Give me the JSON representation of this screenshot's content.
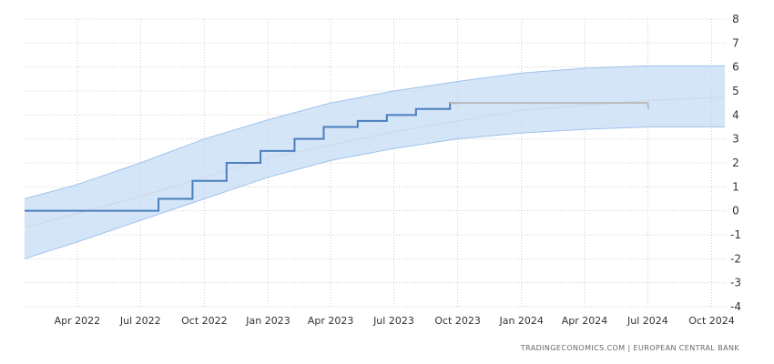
{
  "chart_data": {
    "type": "line",
    "title": "",
    "xlabel": "",
    "ylabel": "",
    "ylim": [
      -4,
      8
    ],
    "yticks": [
      8,
      7,
      6,
      5,
      4,
      3,
      2,
      1,
      0,
      -1,
      -2,
      -3,
      -4
    ],
    "xlim": [
      "2022-01-15",
      "2024-10-20"
    ],
    "xticks": [
      {
        "label": "Apr 2022",
        "date": "2022-04-01"
      },
      {
        "label": "Jul 2022",
        "date": "2022-07-01"
      },
      {
        "label": "Oct 2022",
        "date": "2022-10-01"
      },
      {
        "label": "Jan 2023",
        "date": "2023-01-01"
      },
      {
        "label": "Apr 2023",
        "date": "2023-04-01"
      },
      {
        "label": "Jul 2023",
        "date": "2023-07-01"
      },
      {
        "label": "Oct 2023",
        "date": "2023-10-01"
      },
      {
        "label": "Jan 2024",
        "date": "2024-01-01"
      },
      {
        "label": "Apr 2024",
        "date": "2024-04-01"
      },
      {
        "label": "Jul 2024",
        "date": "2024-07-01"
      },
      {
        "label": "Oct 2024",
        "date": "2024-10-01"
      }
    ],
    "grid": true,
    "y_axis_position": "right",
    "series": [
      {
        "kind": "step",
        "color": "#4a7fbd",
        "points": [
          {
            "x": "2022-01-15",
            "y": 0
          },
          {
            "x": "2022-07-27",
            "y": 0.5
          },
          {
            "x": "2022-09-14",
            "y": 1.25
          },
          {
            "x": "2022-11-02",
            "y": 2.0
          },
          {
            "x": "2022-12-21",
            "y": 2.5
          },
          {
            "x": "2023-02-08",
            "y": 3.0
          },
          {
            "x": "2023-03-22",
            "y": 3.5
          },
          {
            "x": "2023-05-10",
            "y": 3.75
          },
          {
            "x": "2023-06-21",
            "y": 4.0
          },
          {
            "x": "2023-08-02",
            "y": 4.25
          },
          {
            "x": "2023-09-20",
            "y": 4.5
          },
          {
            "x": "2023-09-30",
            "y": 4.5
          }
        ]
      },
      {
        "kind": "forecast",
        "color": "#bbbbbb",
        "points": [
          {
            "x": "2023-09-20",
            "y": 4.5
          },
          {
            "x": "2024-07-01",
            "y": 4.5
          },
          {
            "x": "2024-07-02",
            "y": 4.25
          }
        ]
      },
      {
        "kind": "trend",
        "color": "#cfd6e2",
        "points": [
          {
            "x": "2022-01-15",
            "y": -0.7
          },
          {
            "x": "2022-07-01",
            "y": 0.6
          },
          {
            "x": "2023-01-01",
            "y": 2.2
          },
          {
            "x": "2023-07-01",
            "y": 3.3
          },
          {
            "x": "2024-01-01",
            "y": 4.2
          },
          {
            "x": "2024-07-01",
            "y": 4.6
          },
          {
            "x": "2024-10-20",
            "y": 4.75
          }
        ]
      }
    ],
    "band": {
      "color": "#c5dcf5",
      "edge_color": "#9fc3ec",
      "points": [
        {
          "x": "2022-01-15",
          "lower": -2.0,
          "upper": 0.5
        },
        {
          "x": "2022-04-01",
          "lower": -1.3,
          "upper": 1.1
        },
        {
          "x": "2022-07-01",
          "lower": -0.4,
          "upper": 2.0
        },
        {
          "x": "2022-10-01",
          "lower": 0.5,
          "upper": 3.0
        },
        {
          "x": "2023-01-01",
          "lower": 1.4,
          "upper": 3.8
        },
        {
          "x": "2023-04-01",
          "lower": 2.1,
          "upper": 4.5
        },
        {
          "x": "2023-07-01",
          "lower": 2.6,
          "upper": 5.0
        },
        {
          "x": "2023-10-01",
          "lower": 3.0,
          "upper": 5.4
        },
        {
          "x": "2024-01-01",
          "lower": 3.25,
          "upper": 5.75
        },
        {
          "x": "2024-04-01",
          "lower": 3.4,
          "upper": 5.95
        },
        {
          "x": "2024-07-01",
          "lower": 3.5,
          "upper": 6.05
        },
        {
          "x": "2024-10-20",
          "lower": 3.5,
          "upper": 6.05
        }
      ]
    }
  },
  "source": "TRADINGECONOMICS.COM  |  EUROPEAN CENTRAL BANK"
}
